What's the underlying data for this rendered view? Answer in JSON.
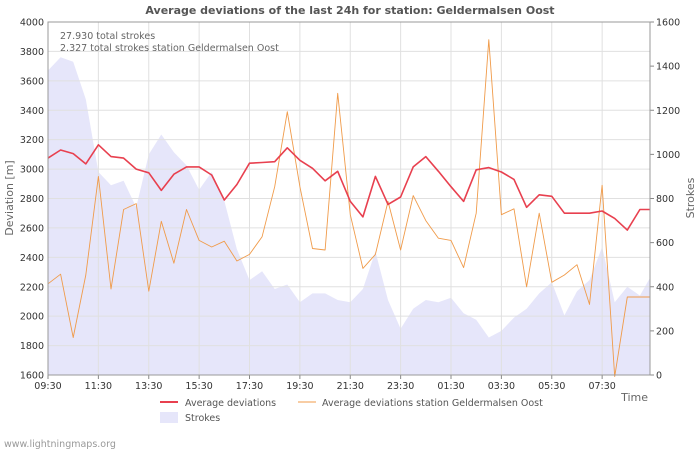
{
  "chart_data": {
    "type": "line",
    "title": "Average deviations of the last 24h for station: Geldermalsen Oost",
    "xlabel": "Time",
    "ylabel_left": "Deviation  [m]",
    "ylabel_right": "Strokes",
    "ylim_left": [
      1600,
      4000
    ],
    "ylim_right": [
      0,
      1600
    ],
    "yticks_left": [
      1600,
      1800,
      2000,
      2200,
      2400,
      2600,
      2800,
      3000,
      3200,
      3400,
      3600,
      3800,
      4000
    ],
    "yticks_right": [
      0,
      200,
      400,
      600,
      800,
      1000,
      1200,
      1400,
      1600
    ],
    "x_range_hours": [
      0,
      23.9
    ],
    "xticks": [
      {
        "h": 0,
        "label": "09:30"
      },
      {
        "h": 2,
        "label": "11:30"
      },
      {
        "h": 4,
        "label": "13:30"
      },
      {
        "h": 6,
        "label": "15:30"
      },
      {
        "h": 8,
        "label": "17:30"
      },
      {
        "h": 10,
        "label": "19:30"
      },
      {
        "h": 12,
        "label": "21:30"
      },
      {
        "h": 14,
        "label": "23:30"
      },
      {
        "h": 16,
        "label": "01:30"
      },
      {
        "h": 18,
        "label": "03:30"
      },
      {
        "h": 20,
        "label": "05:30"
      },
      {
        "h": 22,
        "label": "07:30"
      }
    ],
    "annotations": [
      "27.930 total strokes",
      "2.327 total strokes station Geldermalsen Oost"
    ],
    "series": [
      {
        "name": "Average deviations",
        "color": "#e8404f",
        "axis": "left",
        "x": [
          0,
          0.5,
          1,
          1.5,
          2,
          2.5,
          3,
          3.5,
          4,
          4.5,
          5,
          5.5,
          6,
          6.5,
          7,
          7.5,
          8,
          8.5,
          9,
          9.5,
          10,
          10.5,
          11,
          11.5,
          12,
          12.5,
          13,
          13.5,
          14,
          14.5,
          15,
          15.5,
          16,
          16.5,
          17,
          17.5,
          18,
          18.5,
          19,
          19.5,
          20,
          20.5,
          21,
          21.5,
          22,
          22.5,
          23,
          23.5,
          23.9
        ],
        "values": [
          3075,
          3130,
          3105,
          3035,
          3165,
          3085,
          3075,
          3000,
          2975,
          2855,
          2965,
          3015,
          3015,
          2960,
          2790,
          2895,
          3040,
          3045,
          3050,
          3145,
          3060,
          3005,
          2920,
          2985,
          2780,
          2675,
          2950,
          2760,
          2810,
          3015,
          3085,
          2985,
          2880,
          2780,
          2995,
          3010,
          2980,
          2930,
          2740,
          2825,
          2815,
          2700,
          2700,
          2700,
          2715,
          2665,
          2585,
          2725,
          2725
        ]
      },
      {
        "name": "Average deviations station Geldermalsen Oost",
        "color": "#f09b4a",
        "axis": "left",
        "x": [
          0,
          0.5,
          1,
          1.5,
          2,
          2.5,
          3,
          3.5,
          4,
          4.5,
          5,
          5.5,
          6,
          6.5,
          7,
          7.5,
          8,
          8.5,
          9,
          9.5,
          10,
          10.5,
          11,
          11.5,
          12,
          12.5,
          13,
          13.5,
          14,
          14.5,
          15,
          15.5,
          16,
          16.5,
          17,
          17.5,
          18,
          18.5,
          19,
          19.5,
          20,
          20.5,
          21,
          21.5,
          22,
          22.5,
          23,
          23.5,
          23.9
        ],
        "values": [
          2220,
          2285,
          1855,
          2280,
          2950,
          2185,
          2725,
          2765,
          2170,
          2645,
          2360,
          2725,
          2515,
          2470,
          2510,
          2375,
          2420,
          2540,
          2880,
          3390,
          2880,
          2460,
          2450,
          3515,
          2690,
          2325,
          2420,
          2780,
          2450,
          2820,
          2650,
          2530,
          2515,
          2330,
          2700,
          3880,
          2690,
          2730,
          2200,
          2700,
          2230,
          2280,
          2350,
          2080,
          2890,
          1590,
          2130,
          2130,
          2130
        ]
      },
      {
        "name": "Strokes",
        "color": "#e6e6fa",
        "axis": "right",
        "x": [
          0,
          0.5,
          1,
          1.5,
          2,
          2.5,
          3,
          3.5,
          4,
          4.5,
          5,
          5.5,
          6,
          6.5,
          7,
          7.5,
          8,
          8.5,
          9,
          9.5,
          10,
          10.5,
          11,
          11.5,
          12,
          12.5,
          13,
          13.5,
          14,
          14.5,
          15,
          15.5,
          16,
          16.5,
          17,
          17.5,
          18,
          18.5,
          19,
          19.5,
          20,
          20.5,
          21,
          21.5,
          22,
          22.5,
          23,
          23.5,
          23.9
        ],
        "values": [
          1380,
          1440,
          1420,
          1250,
          920,
          860,
          880,
          760,
          1000,
          1090,
          1010,
          950,
          840,
          920,
          790,
          570,
          430,
          470,
          390,
          410,
          330,
          370,
          370,
          340,
          330,
          390,
          560,
          340,
          210,
          300,
          340,
          330,
          350,
          280,
          250,
          170,
          200,
          260,
          300,
          370,
          420,
          270,
          380,
          430,
          580,
          330,
          400,
          360,
          440
        ]
      }
    ],
    "legend": {
      "placement": "bottom",
      "items": [
        "Average deviations",
        "Average deviations station Geldermalsen Oost",
        "Strokes"
      ]
    }
  },
  "footer": {
    "credit": "www.lightningmaps.org"
  }
}
